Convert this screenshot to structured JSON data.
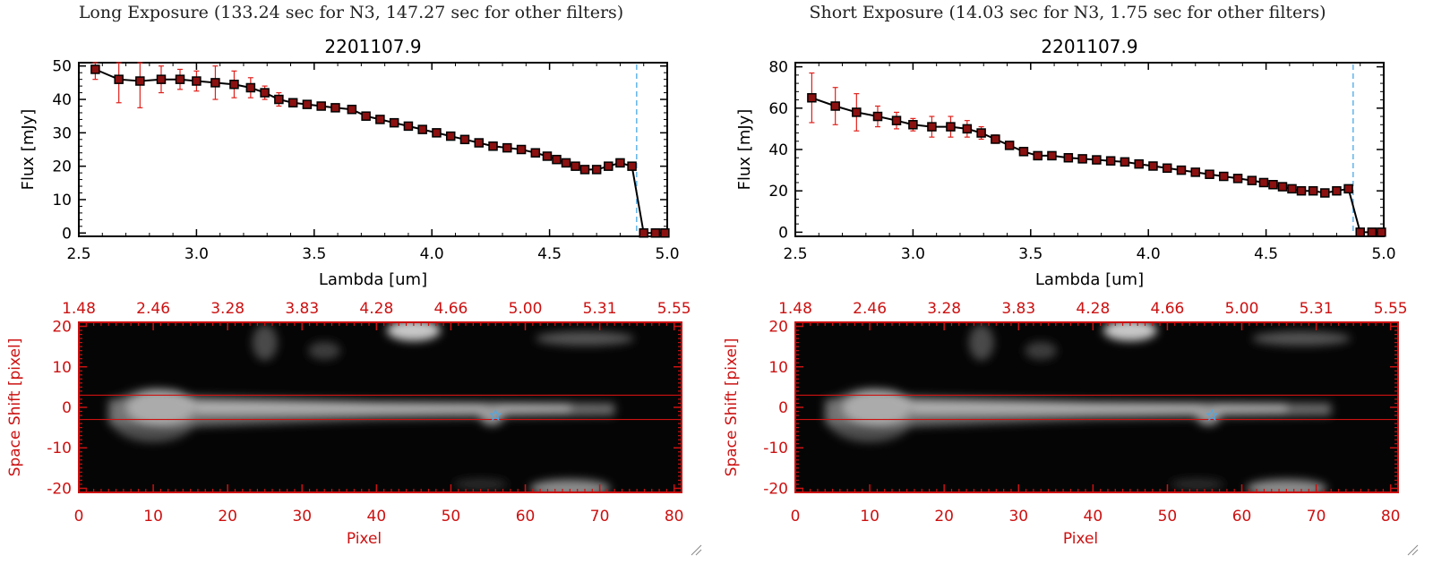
{
  "panels": [
    {
      "exposure_title": "Long Exposure (133.24 sec for N3, 147.27 sec for other filters)",
      "spectrum": {
        "title": "2201107.9",
        "xlabel": "Lambda [um]",
        "ylabel": "Flux [mJy]",
        "xticks": [
          "2.5",
          "3.0",
          "3.5",
          "4.0",
          "4.5",
          "5.0"
        ],
        "yticks": [
          "0",
          "10",
          "20",
          "30",
          "40",
          "50"
        ]
      },
      "image": {
        "top_ticks": [
          "1.48",
          "2.46",
          "3.28",
          "3.83",
          "4.28",
          "4.66",
          "5.00",
          "5.31",
          "5.55"
        ],
        "xticks": [
          "0",
          "10",
          "20",
          "30",
          "40",
          "50",
          "60",
          "70",
          "80"
        ],
        "yticks": [
          "20",
          "10",
          "0",
          "-10",
          "-20"
        ],
        "xlabel": "Pixel",
        "ylabel": "Space Shift [pixel]"
      }
    },
    {
      "exposure_title": "Short Exposure (14.03 sec for N3, 1.75 sec for other filters)",
      "spectrum": {
        "title": "2201107.9",
        "xlabel": "Lambda [um]",
        "ylabel": "Flux [mJy]",
        "xticks": [
          "2.5",
          "3.0",
          "3.5",
          "4.0",
          "4.5",
          "5.0"
        ],
        "yticks": [
          "0",
          "20",
          "40",
          "60",
          "80"
        ]
      },
      "image": {
        "top_ticks": [
          "1.48",
          "2.46",
          "3.28",
          "3.83",
          "4.28",
          "4.66",
          "5.00",
          "5.31",
          "5.55"
        ],
        "xticks": [
          "0",
          "10",
          "20",
          "30",
          "40",
          "50",
          "60",
          "70",
          "80"
        ],
        "yticks": [
          "20",
          "10",
          "0",
          "-10",
          "-20"
        ],
        "xlabel": "Pixel",
        "ylabel": "Space Shift [pixel]"
      }
    }
  ],
  "colors": {
    "axis_red": "#cc1111",
    "errorbar_red": "#e0201b",
    "marker_fill": "#8b1010",
    "line_black": "#000000",
    "dashed_blue": "#4aa8e8",
    "star_blue": "#4aa8e8"
  },
  "chart_data": [
    {
      "type": "line",
      "title": "2201107.9",
      "xlabel": "Lambda [um]",
      "ylabel": "Flux [mJy]",
      "xlim": [
        2.5,
        5.0
      ],
      "ylim": [
        -1,
        51
      ],
      "vline_x": 4.87,
      "x": [
        2.57,
        2.67,
        2.76,
        2.85,
        2.93,
        3.0,
        3.08,
        3.16,
        3.23,
        3.29,
        3.35,
        3.41,
        3.47,
        3.53,
        3.59,
        3.66,
        3.72,
        3.78,
        3.84,
        3.9,
        3.96,
        4.02,
        4.08,
        4.14,
        4.2,
        4.26,
        4.32,
        4.38,
        4.44,
        4.49,
        4.53,
        4.57,
        4.61,
        4.65,
        4.7,
        4.75,
        4.8,
        4.85,
        4.9,
        4.95,
        4.99
      ],
      "y": [
        49,
        46,
        45.5,
        46,
        46,
        45.5,
        45,
        44.5,
        43.5,
        42,
        40,
        39,
        38.5,
        38,
        37.5,
        37,
        35,
        34,
        33,
        32,
        31,
        30,
        29,
        28,
        27,
        26,
        25.5,
        25,
        24,
        23,
        22,
        21,
        20,
        19,
        19,
        20,
        21,
        20,
        0,
        0,
        0
      ],
      "yerr": [
        3,
        7,
        8,
        4,
        3,
        3,
        5,
        4,
        3,
        2,
        2,
        1,
        1,
        1,
        1,
        1,
        1,
        1,
        1,
        1,
        1,
        1,
        1,
        1,
        1,
        1,
        1,
        1,
        1,
        1,
        1,
        1,
        1,
        1,
        1,
        1,
        1,
        1,
        0,
        0,
        0
      ]
    },
    {
      "type": "line",
      "title": "2201107.9",
      "xlabel": "Lambda [um]",
      "ylabel": "Flux [mJy]",
      "xlim": [
        2.5,
        5.0
      ],
      "ylim": [
        -2,
        82
      ],
      "vline_x": 4.87,
      "x": [
        2.57,
        2.67,
        2.76,
        2.85,
        2.93,
        3.0,
        3.08,
        3.16,
        3.23,
        3.29,
        3.35,
        3.41,
        3.47,
        3.53,
        3.59,
        3.66,
        3.72,
        3.78,
        3.84,
        3.9,
        3.96,
        4.02,
        4.08,
        4.14,
        4.2,
        4.26,
        4.32,
        4.38,
        4.44,
        4.49,
        4.53,
        4.57,
        4.61,
        4.65,
        4.7,
        4.75,
        4.8,
        4.85,
        4.9,
        4.95,
        4.99
      ],
      "y": [
        65,
        61,
        58,
        56,
        54,
        52,
        51,
        51,
        50,
        48,
        45,
        42,
        39,
        37,
        37,
        36,
        35.5,
        35,
        34.5,
        34,
        33,
        32,
        31,
        30,
        29,
        28,
        27,
        26,
        25,
        24,
        23,
        22,
        21,
        20,
        20,
        19,
        20,
        21,
        0,
        0,
        0
      ],
      "yerr": [
        12,
        9,
        9,
        5,
        4,
        3,
        5,
        5,
        4,
        3,
        2,
        1,
        1,
        1,
        1,
        1,
        1,
        1,
        1,
        1,
        1,
        1,
        1,
        1,
        1,
        1,
        1,
        1,
        1,
        1,
        1,
        1,
        1,
        1,
        1,
        1,
        1,
        1,
        0,
        0,
        0
      ]
    },
    {
      "type": "heatmap",
      "xlabel": "Pixel",
      "ylabel": "Space Shift [pixel]",
      "xlim": [
        0,
        81
      ],
      "ylim": [
        -21,
        21
      ],
      "extraction_band": [
        -3,
        3
      ],
      "star_marker": [
        56,
        -2
      ]
    },
    {
      "type": "heatmap",
      "xlabel": "Pixel",
      "ylabel": "Space Shift [pixel]",
      "xlim": [
        0,
        81
      ],
      "ylim": [
        -21,
        21
      ],
      "extraction_band": [
        -3,
        3
      ],
      "star_marker": [
        56,
        -2
      ]
    }
  ]
}
